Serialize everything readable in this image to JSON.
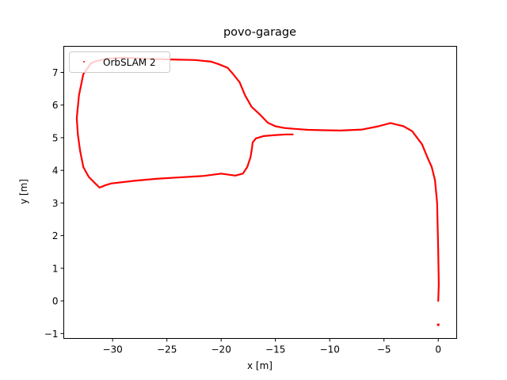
{
  "chart_data": {
    "type": "scatter",
    "title": "povo-garage",
    "xlabel": "x [m]",
    "ylabel": "y [m]",
    "xlim": [
      -34.5,
      1.7
    ],
    "ylim": [
      -1.15,
      7.8
    ],
    "xticks": [
      -30,
      -25,
      -20,
      -15,
      -10,
      -5,
      0
    ],
    "xtick_labels": [
      "−30",
      "−25",
      "−20",
      "−15",
      "−10",
      "−5",
      "0"
    ],
    "yticks": [
      -1,
      0,
      1,
      2,
      3,
      4,
      5,
      6,
      7
    ],
    "ytick_labels": [
      "−1",
      "0",
      "1",
      "2",
      "3",
      "4",
      "5",
      "6",
      "7"
    ],
    "grid": false,
    "legend": {
      "position": "upper left",
      "entries": [
        "OrbSLAM 2"
      ]
    },
    "series": [
      {
        "name": "OrbSLAM 2",
        "color": "#ff0000",
        "marker": "point",
        "x": [
          0.0,
          0.05,
          0.0,
          -0.1,
          -0.3,
          -0.6,
          -1.0,
          -1.5,
          -2.4,
          -3.2,
          -4.4,
          -5.5,
          -7.0,
          -9.0,
          -10.5,
          -12.0,
          -13.2,
          -14.2,
          -15.0,
          -15.7,
          -16.4,
          -17.2,
          -17.8,
          -18.3,
          -18.9,
          -19.4,
          -20.2,
          -20.9,
          -22.4,
          -25.0,
          -27.0,
          -29.0,
          -30.5,
          -31.5,
          -32.0,
          -32.7,
          -33.1,
          -33.3,
          -33.2,
          -33.0,
          -32.7,
          -32.2,
          -31.6,
          -31.2,
          -30.6,
          -30.1,
          -28.0,
          -26.0,
          -24.0,
          -21.6,
          -20.0,
          -18.7,
          -18.0,
          -17.6,
          -17.3,
          -17.15,
          -17.1,
          -16.8,
          -16.1,
          -15.0,
          -14.0,
          -13.4
        ],
        "y": [
          0.0,
          0.5,
          1.5,
          3.0,
          3.7,
          4.1,
          4.4,
          4.8,
          5.2,
          5.35,
          5.45,
          5.35,
          5.25,
          5.22,
          5.23,
          5.24,
          5.27,
          5.3,
          5.35,
          5.46,
          5.7,
          5.95,
          6.3,
          6.7,
          6.95,
          7.14,
          7.25,
          7.33,
          7.38,
          7.4,
          7.42,
          7.45,
          7.42,
          7.35,
          7.28,
          6.95,
          6.3,
          5.6,
          5.1,
          4.6,
          4.1,
          3.8,
          3.6,
          3.47,
          3.55,
          3.6,
          3.68,
          3.74,
          3.78,
          3.83,
          3.9,
          3.84,
          3.9,
          4.1,
          4.4,
          4.7,
          4.85,
          4.98,
          5.05,
          5.08,
          5.1,
          5.1
        ],
        "outlier_points": [
          {
            "x": 0.0,
            "y": -0.73
          }
        ]
      }
    ]
  }
}
